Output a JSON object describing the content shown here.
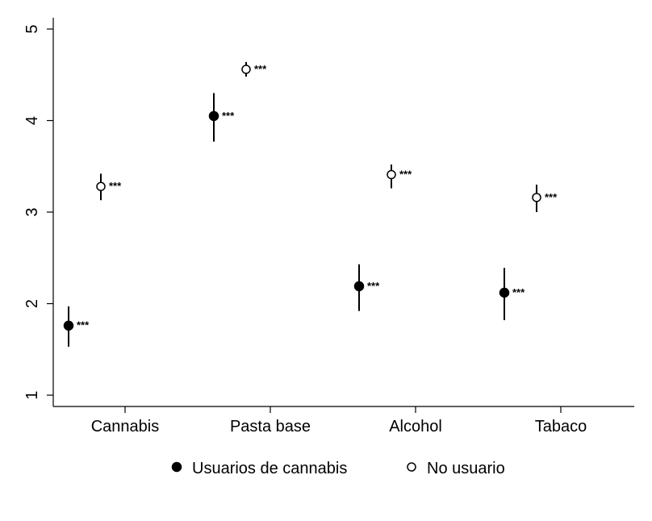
{
  "chart_data": {
    "type": "scatter",
    "categories": [
      "Cannabis",
      "Pasta base",
      "Alcohol",
      "Tabaco"
    ],
    "y_ticks": [
      "1",
      "2",
      "3",
      "4",
      "5"
    ],
    "ylim": [
      1,
      5
    ],
    "grid": false,
    "legend_position": "bottom",
    "series": [
      {
        "name": "Usuarios de cannabis",
        "marker": "filled-circle",
        "color": "#000000",
        "values": [
          1.76,
          4.05,
          2.19,
          2.12
        ],
        "ci_low": [
          1.53,
          3.77,
          1.92,
          1.82
        ],
        "ci_high": [
          1.97,
          4.3,
          2.43,
          2.39
        ],
        "significance": [
          "***",
          "***",
          "***",
          "***"
        ]
      },
      {
        "name": "No usuario",
        "marker": "hollow-circle",
        "color": "#000000",
        "values": [
          3.28,
          4.56,
          3.41,
          3.16
        ],
        "ci_low": [
          3.13,
          4.48,
          3.26,
          3.0
        ],
        "ci_high": [
          3.42,
          4.64,
          3.52,
          3.3
        ],
        "significance": [
          "***",
          "***",
          "***",
          "***"
        ]
      }
    ]
  }
}
